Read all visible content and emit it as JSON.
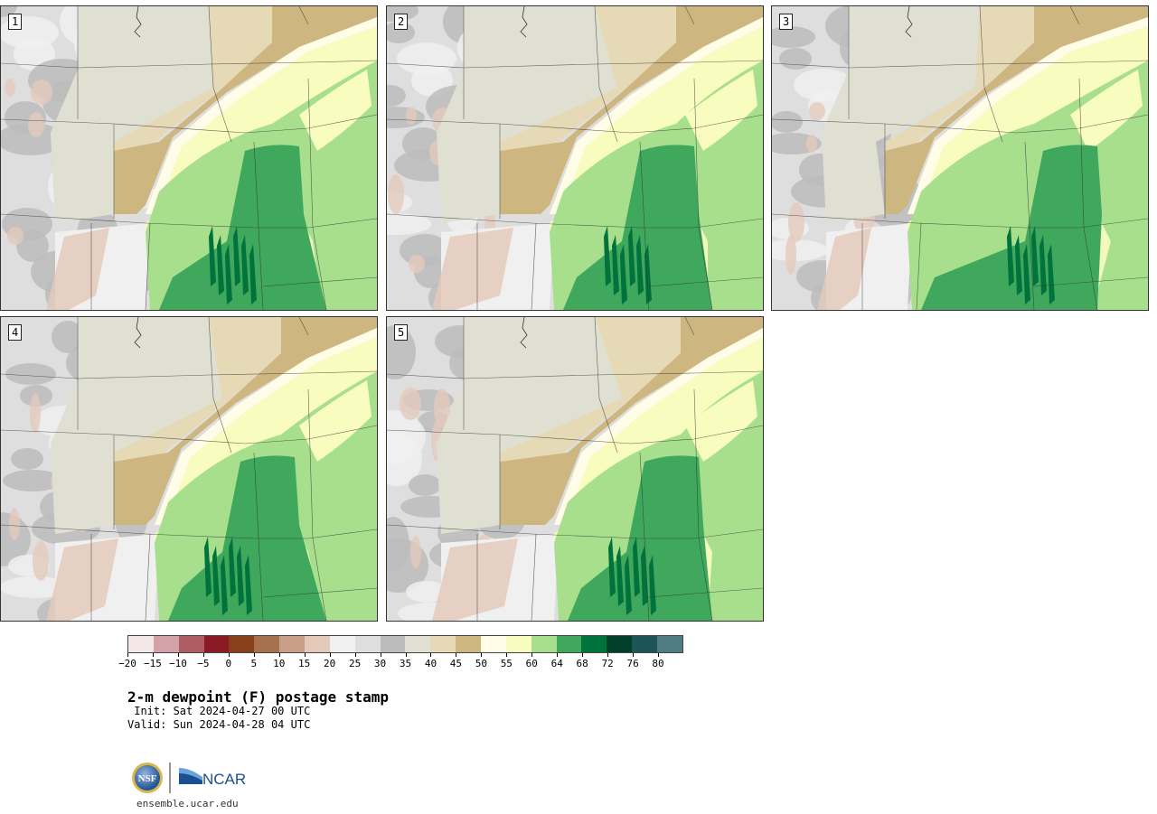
{
  "panels": [
    {
      "label": "1"
    },
    {
      "label": "2"
    },
    {
      "label": "3"
    },
    {
      "label": "4"
    },
    {
      "label": "5"
    }
  ],
  "colorbar": {
    "colors": [
      "#f4e7ea",
      "#d4a1a8",
      "#ae5d62",
      "#8a1b24",
      "#874019",
      "#a7714f",
      "#c89e86",
      "#e4c9bb",
      "#f0f0f0",
      "#dedede",
      "#bcbcbc",
      "#e0e0d2",
      "#e6d9b6",
      "#cdb680",
      "#fffde8",
      "#f9fcbf",
      "#a8df8d",
      "#3fa85d",
      "#00723b",
      "#003f2a",
      "#1d5458",
      "#4f7c82"
    ],
    "tick_labels": [
      "−20",
      "−15",
      "−10",
      "−5",
      "0",
      "5",
      "10",
      "15",
      "20",
      "25",
      "30",
      "35",
      "40",
      "45",
      "50",
      "55",
      "60",
      "64",
      "68",
      "72",
      "76",
      "80"
    ]
  },
  "title": "2-m dewpoint (F) postage stamp",
  "init": " Init: Sat 2024-04-27 00 UTC",
  "valid": "Valid: Sun 2024-04-28 04 UTC",
  "logo_text": {
    "nsf": "NSF",
    "ncar": "NCAR"
  },
  "url": "ensemble.ucar.edu"
}
